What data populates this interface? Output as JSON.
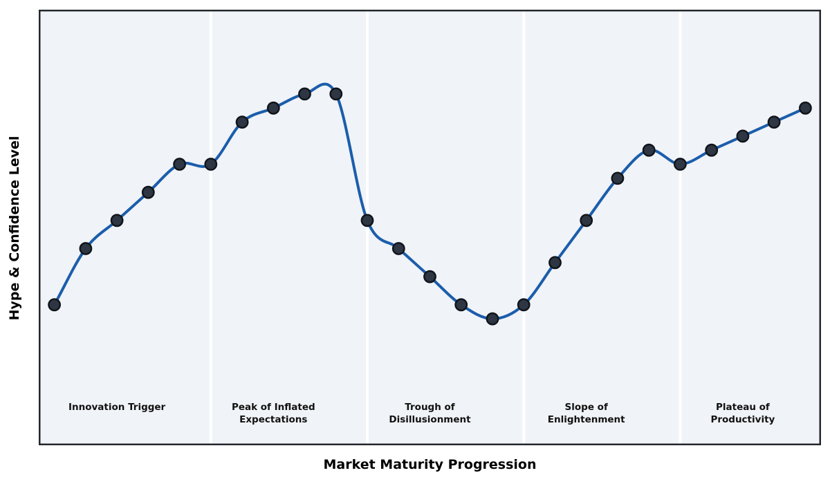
{
  "chart_data": {
    "type": "line",
    "title": "",
    "xlabel": "Market Maturity Progression",
    "ylabel": "Hype & Confidence Level",
    "x": [
      0,
      1,
      2,
      3,
      4,
      5,
      6,
      7,
      8,
      9,
      10,
      11,
      12,
      13,
      14,
      15,
      16,
      17,
      18,
      19,
      20,
      21,
      22,
      23,
      24
    ],
    "series": [
      {
        "name": "Hype & Confidence",
        "values": [
          30,
          42,
          48,
          54,
          60,
          60,
          69,
          72,
          75,
          75,
          48,
          42,
          36,
          30,
          27,
          30,
          39,
          48,
          57,
          63,
          60,
          63,
          66,
          69,
          72
        ]
      }
    ],
    "xlim": [
      -0.5,
      24.5
    ],
    "ylim": [
      0,
      93
    ],
    "grid": false,
    "legend": false,
    "axis_ticks": "none",
    "curve_style": "smooth-spline",
    "phase_boundaries_x": [
      5,
      10,
      15,
      20
    ],
    "phases": [
      {
        "label": "Innovation Trigger",
        "center_x": 2
      },
      {
        "label": "Peak of Inflated\nExpectations",
        "center_x": 7
      },
      {
        "label": "Trough of\nDisillusionment",
        "center_x": 12
      },
      {
        "label": "Slope of\nEnlightenment",
        "center_x": 17
      },
      {
        "label": "Plateau of\nProductivity",
        "center_x": 22
      }
    ],
    "styles": {
      "line_color": "#1b5dab",
      "marker_fill": "#2d3642",
      "marker_edge": "#10141a",
      "plot_bg": "#f0f3f7",
      "border_color": "#24282d",
      "separator_color": "#ffffff",
      "phase_label_color": "#111111"
    }
  }
}
